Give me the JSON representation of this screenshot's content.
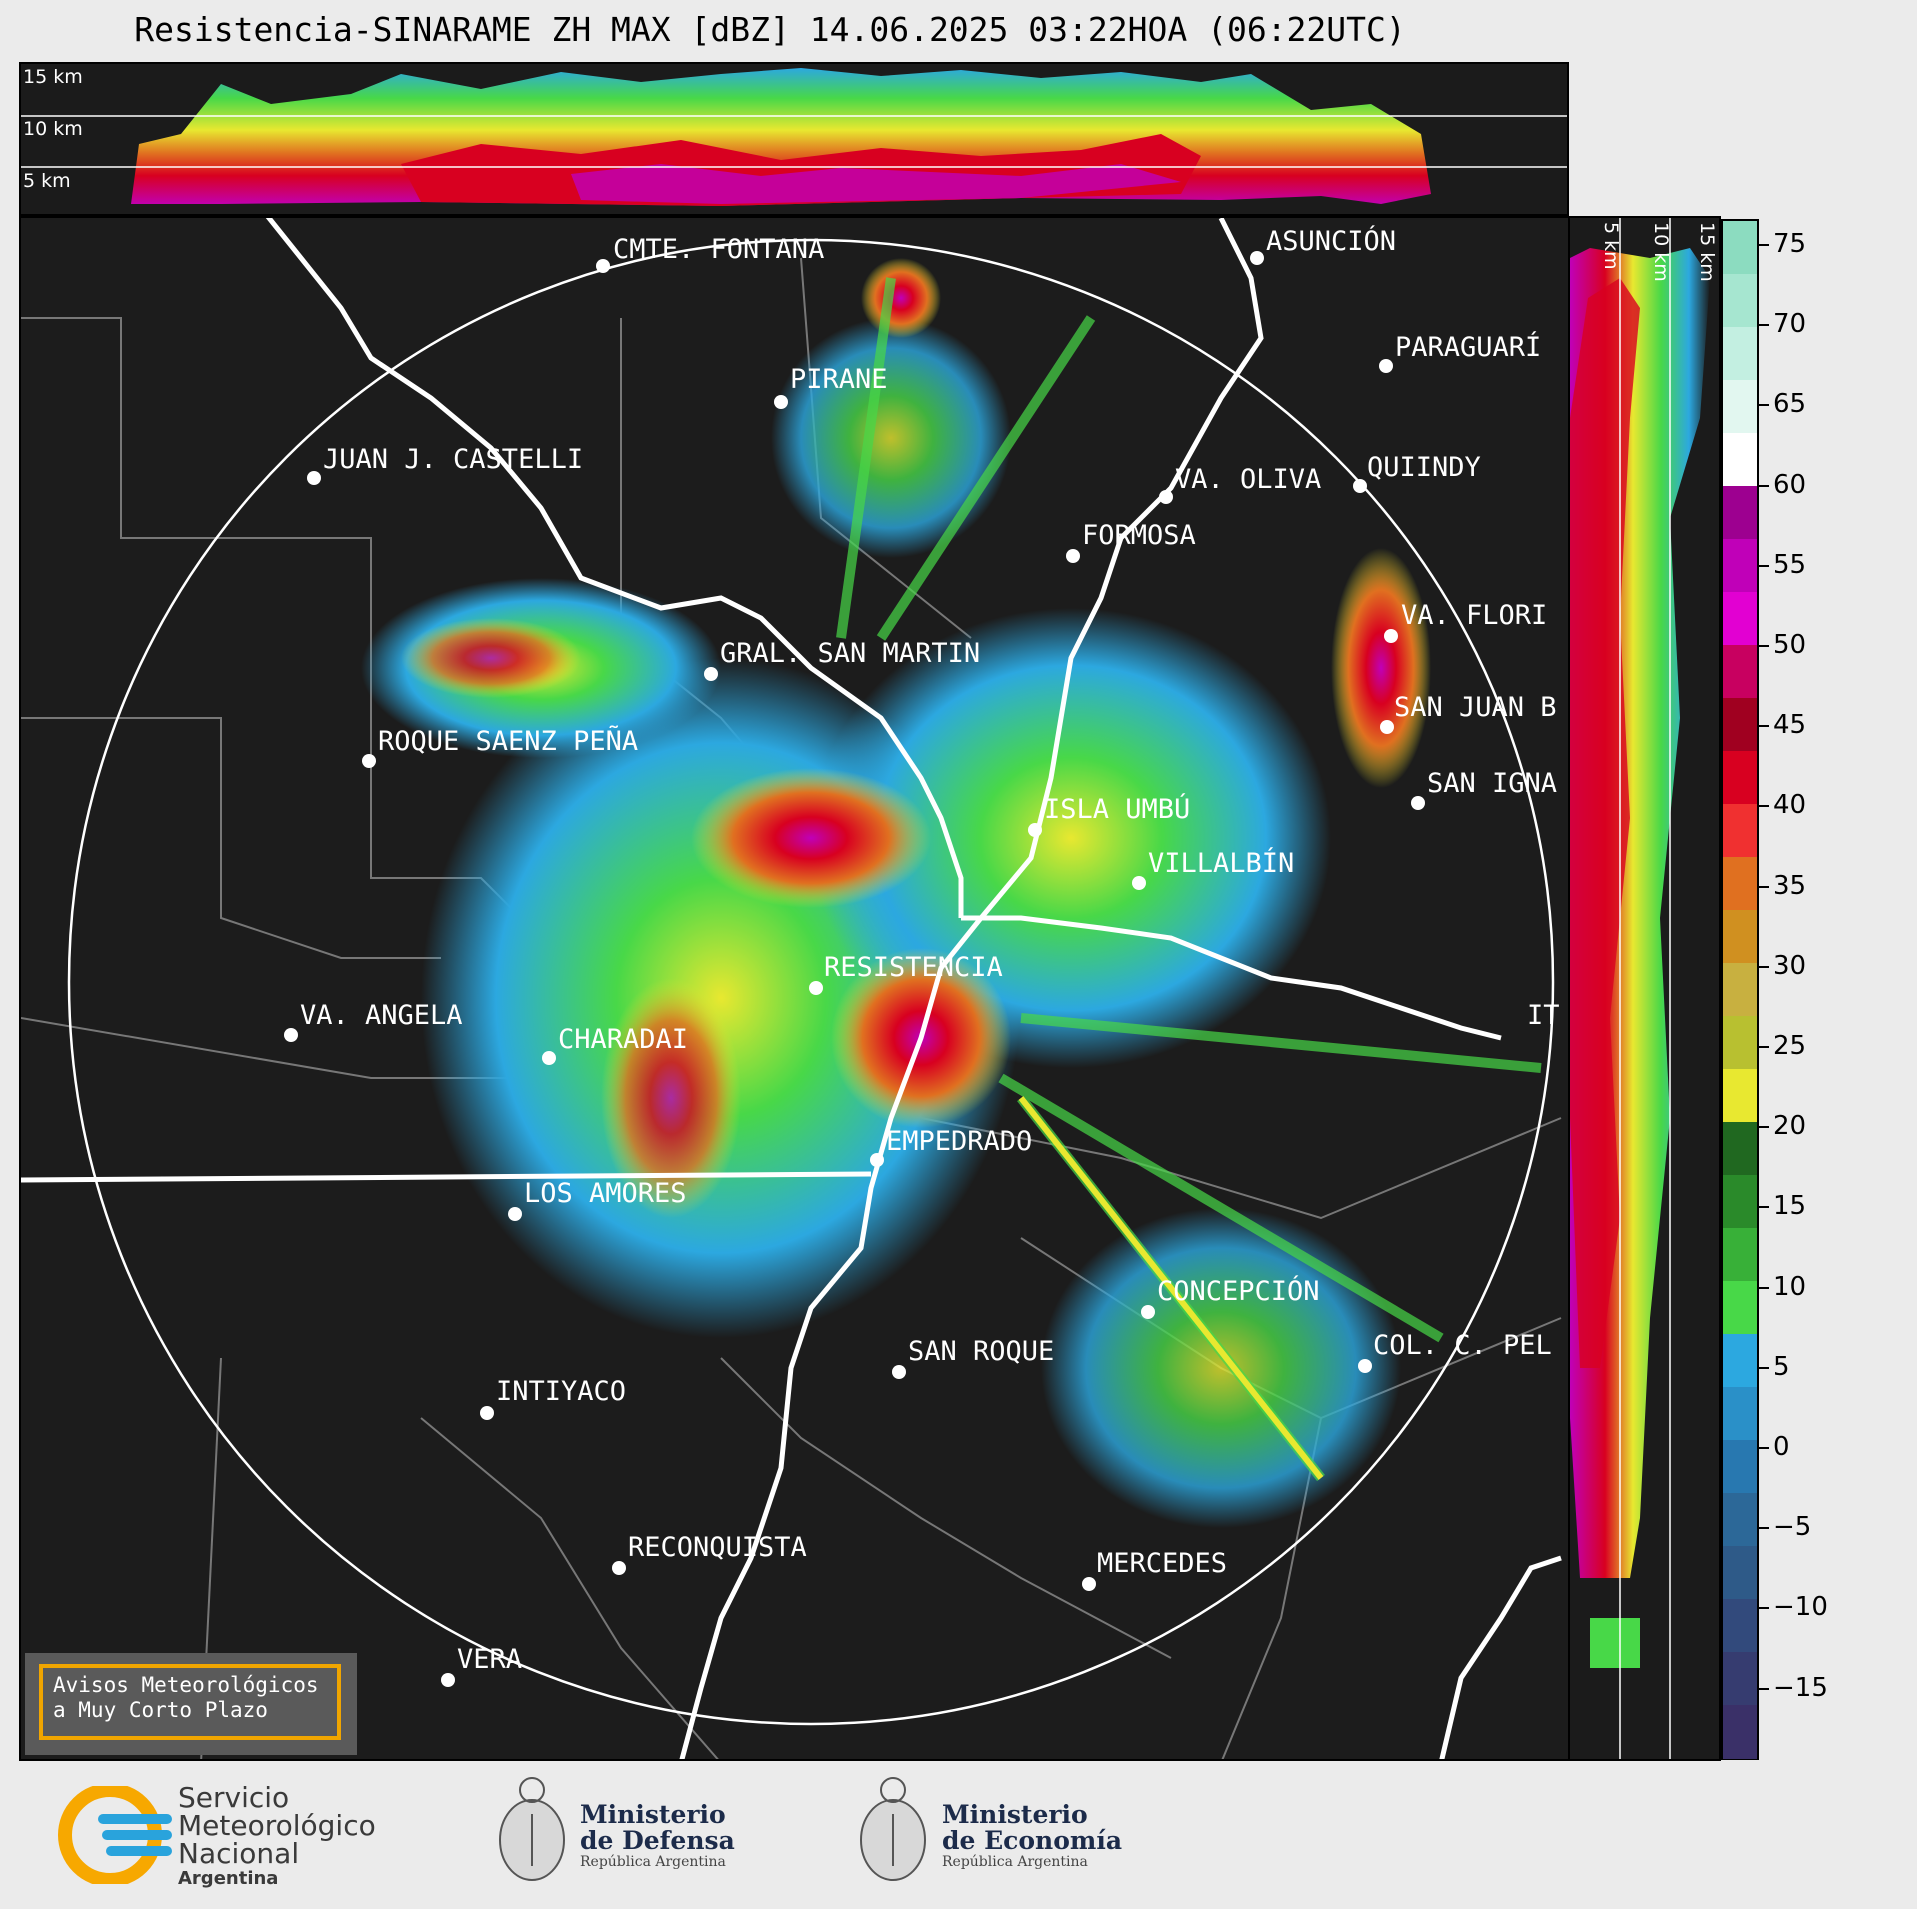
{
  "title": "Resistencia-SINARAME ZH MAX [dBZ] 14.06.2025 03:22HOA (06:22UTC)",
  "top_section": {
    "altitudes": [
      "15 km",
      "10 km",
      "5 km"
    ]
  },
  "side_section": {
    "altitudes": [
      "5 km",
      "10 km",
      "15 km"
    ]
  },
  "colorbar": {
    "unit": "dBZ",
    "ticks": [
      "75",
      "70",
      "65",
      "60",
      "55",
      "50",
      "45",
      "40",
      "35",
      "30",
      "25",
      "20",
      "15",
      "10",
      "5",
      "0",
      "−5",
      "−10",
      "−15"
    ],
    "colors": [
      "#8cdcc0",
      "#a6e6d0",
      "#c3efe1",
      "#e2f7f0",
      "#ffffff",
      "#9d0090",
      "#c000b8",
      "#e200d2",
      "#c80060",
      "#a00020",
      "#d80020",
      "#f03030",
      "#e07020",
      "#d09020",
      "#c8b040",
      "#b8c030",
      "#e8e830",
      "#206820",
      "#2a8a2a",
      "#38b038",
      "#48d848",
      "#2ca8e0",
      "#2a90c8",
      "#2878b0",
      "#2c6898",
      "#2e5a88",
      "#324a7c",
      "#363c70",
      "#3a3068"
    ]
  },
  "cities": [
    {
      "name": "CMTE. FONTANA"
    },
    {
      "name": "ASUNCIÓN"
    },
    {
      "name": "PARAGUARÍ"
    },
    {
      "name": "PIRANE"
    },
    {
      "name": "JUAN J. CASTELLI"
    },
    {
      "name": "VA. OLIVA"
    },
    {
      "name": "QUIINDY"
    },
    {
      "name": "FORMOSA"
    },
    {
      "name": "VA. FLORI"
    },
    {
      "name": "GRAL. SAN MARTIN"
    },
    {
      "name": "SAN JUAN B"
    },
    {
      "name": "ROQUE SAENZ PEÑA"
    },
    {
      "name": "SAN IGNA"
    },
    {
      "name": "ISLA UMBÚ"
    },
    {
      "name": "VILLALBÍN"
    },
    {
      "name": "RESISTENCIA"
    },
    {
      "name": "VA. ANGELA"
    },
    {
      "name": "CHARADAI"
    },
    {
      "name": "IT"
    },
    {
      "name": "EMPEDRADO"
    },
    {
      "name": "LOS AMORES"
    },
    {
      "name": "CONCEPCIÓN"
    },
    {
      "name": "SAN ROQUE"
    },
    {
      "name": "COL. C. PEL"
    },
    {
      "name": "INTIYACO"
    },
    {
      "name": "RECONQUISTA"
    },
    {
      "name": "MERCEDES"
    },
    {
      "name": "VERA"
    }
  ],
  "alert_box": {
    "line1": "Avisos Meteorológicos",
    "line2": "a Muy Corto Plazo"
  },
  "logos": {
    "smn": {
      "line1": "Servicio",
      "line2": "Meteorológico",
      "line3": "Nacional",
      "line4": "Argentina"
    },
    "defensa": {
      "line1": "Ministerio",
      "line2": "de Defensa",
      "line3": "República Argentina"
    },
    "economia": {
      "line1": "Ministerio",
      "line2": "de Economía",
      "line3": "República Argentina"
    }
  }
}
